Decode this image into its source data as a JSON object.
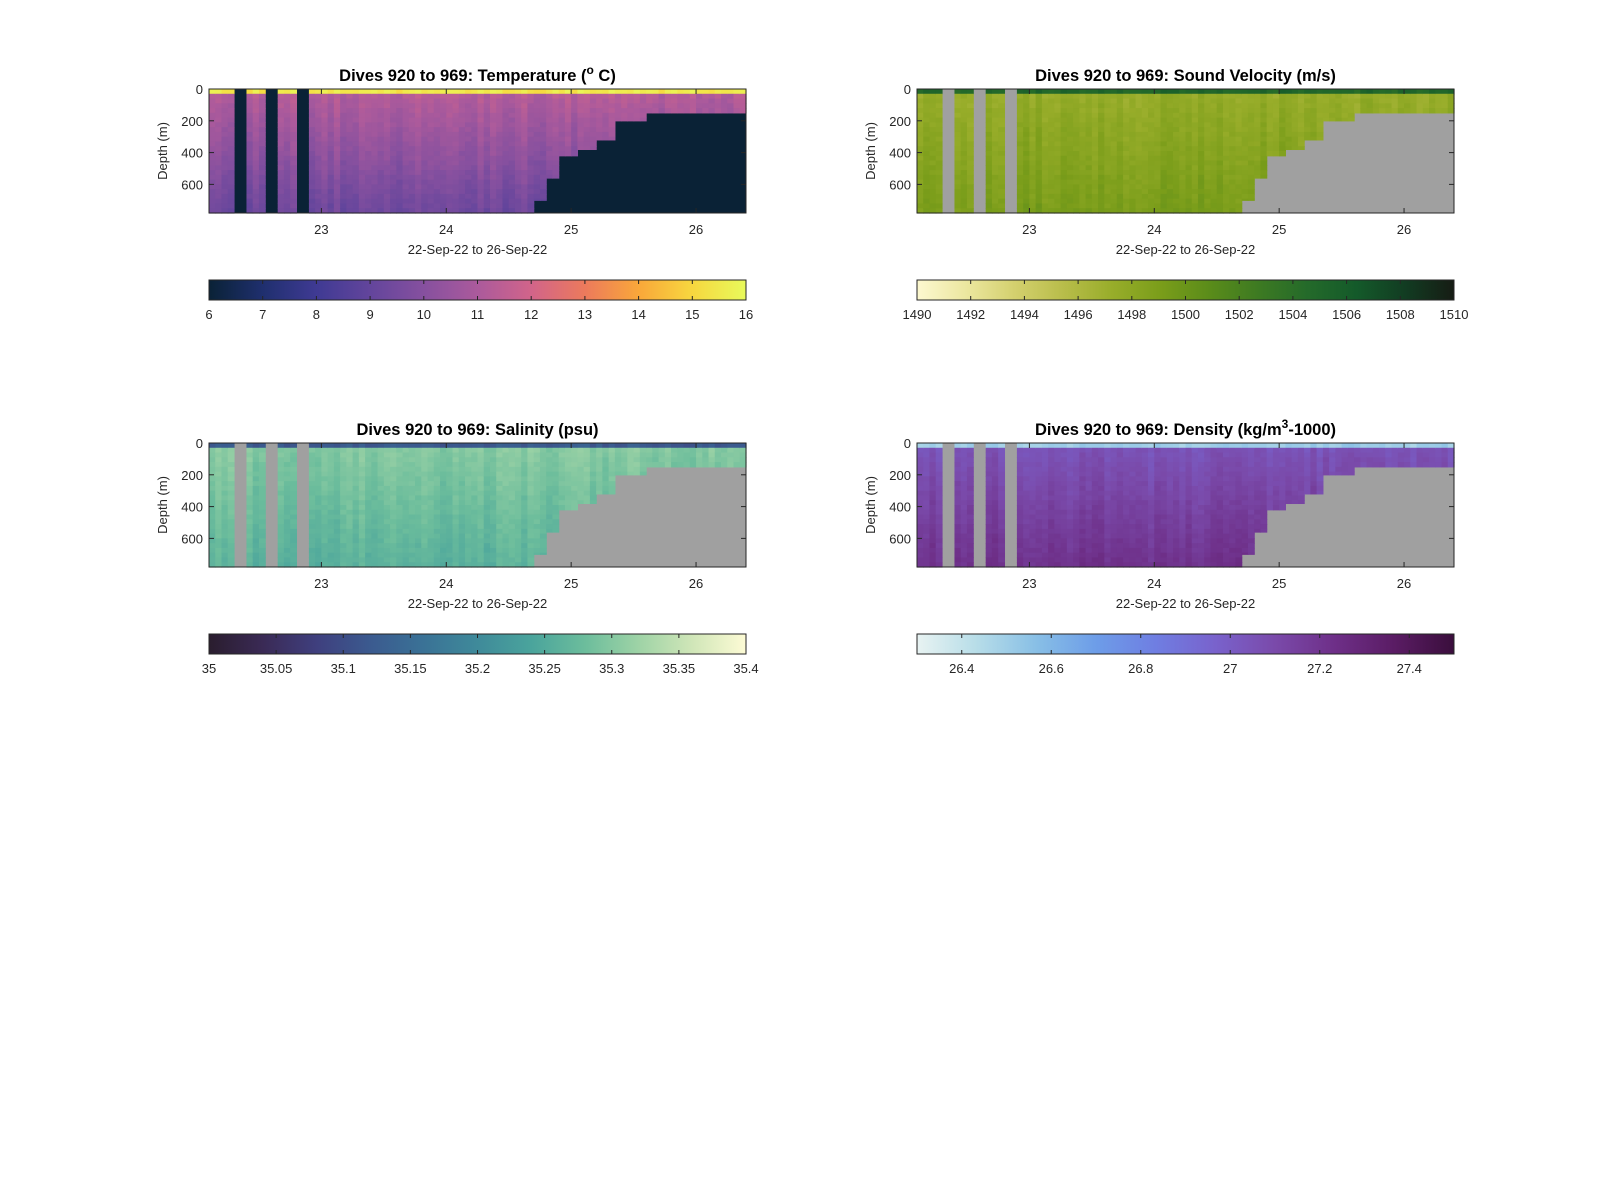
{
  "figure": {
    "x_axis_label": "22-Sep-22 to 26-Sep-22",
    "y_axis_label": "Depth (m)",
    "missing_data_color": "#a0a0a0"
  },
  "chart_data": [
    {
      "type": "heatmap",
      "title": "Dives 920 to 969: Temperature (° C)",
      "title_parts": {
        "pre": "Dives 920 to 969: Temperature (",
        "sup": "o",
        "post": " C)"
      },
      "xlabel": "22-Sep-22 to 26-Sep-22",
      "ylabel": "Depth (m)",
      "x_ticks": [
        "23",
        "24",
        "25",
        "26"
      ],
      "y_ticks": [
        "0",
        "200",
        "400",
        "600"
      ],
      "xlim": [
        22.1,
        26.4
      ],
      "ylim": [
        0,
        780
      ],
      "colorbar": {
        "min": 6,
        "max": 16,
        "ticks": [
          "6",
          "7",
          "8",
          "9",
          "10",
          "11",
          "12",
          "13",
          "14",
          "15",
          "16"
        ],
        "colormap": [
          "#0a2236",
          "#1f2f6e",
          "#3f3a93",
          "#63459c",
          "#86509f",
          "#ab5a9c",
          "#d1648a",
          "#ec7a5c",
          "#f9a73a",
          "#f7d73f",
          "#e8fa5b"
        ]
      },
      "missing_color": "#0a2236",
      "profile": {
        "surface": 15.5,
        "mixed_layer_depth": 40,
        "thermocline_value": 11.2,
        "deep_value": 9.3
      },
      "gaps_days": [
        22.35,
        22.61,
        22.87
      ],
      "max_depth_by_day": [
        [
          22.1,
          780
        ],
        [
          24.6,
          780
        ],
        [
          24.7,
          700
        ],
        [
          24.78,
          560
        ],
        [
          24.88,
          420
        ],
        [
          25.05,
          380
        ],
        [
          25.2,
          320
        ],
        [
          25.35,
          200
        ],
        [
          25.6,
          150
        ],
        [
          26.4,
          120
        ]
      ]
    },
    {
      "type": "heatmap",
      "title": "Dives 920 to 969: Sound Velocity (m/s)",
      "title_parts": {
        "pre": "Dives 920 to 969: Sound Velocity (m/s)",
        "sup": "",
        "post": ""
      },
      "xlabel": "22-Sep-22 to 26-Sep-22",
      "ylabel": "Depth (m)",
      "x_ticks": [
        "23",
        "24",
        "25",
        "26"
      ],
      "y_ticks": [
        "0",
        "200",
        "400",
        "600"
      ],
      "xlim": [
        22.1,
        26.4
      ],
      "ylim": [
        0,
        780
      ],
      "colorbar": {
        "min": 1490,
        "max": 1510,
        "ticks": [
          "1490",
          "1492",
          "1494",
          "1496",
          "1498",
          "1500",
          "1502",
          "1504",
          "1506",
          "1508",
          "1510"
        ],
        "colormap": [
          "#fdf8d0",
          "#ece7a0",
          "#d4d06e",
          "#b8bd4a",
          "#98ad2a",
          "#7a9d1a",
          "#5a8c1a",
          "#3d7a22",
          "#246a2a",
          "#145a2a",
          "#123c22",
          "#161c14"
        ]
      },
      "missing_color": "#a0a0a0",
      "profile": {
        "surface": 1505,
        "mixed_layer_depth": 40,
        "thermocline_value": 1497.5,
        "deep_value": 1499.2
      },
      "gaps_days": [
        22.35,
        22.61,
        22.87
      ],
      "max_depth_by_day": [
        [
          22.1,
          780
        ],
        [
          24.6,
          780
        ],
        [
          24.7,
          700
        ],
        [
          24.78,
          560
        ],
        [
          24.88,
          420
        ],
        [
          25.05,
          380
        ],
        [
          25.2,
          320
        ],
        [
          25.35,
          200
        ],
        [
          25.6,
          150
        ],
        [
          26.4,
          120
        ]
      ]
    },
    {
      "type": "heatmap",
      "title": "Dives 920 to 969: Salinity (psu)",
      "title_parts": {
        "pre": "Dives 920 to 969: Salinity (psu)",
        "sup": "",
        "post": ""
      },
      "xlabel": "22-Sep-22 to 26-Sep-22",
      "ylabel": "Depth (m)",
      "x_ticks": [
        "23",
        "24",
        "25",
        "26"
      ],
      "y_ticks": [
        "0",
        "200",
        "400",
        "600"
      ],
      "xlim": [
        22.1,
        26.4
      ],
      "ylim": [
        0,
        780
      ],
      "colorbar": {
        "min": 35,
        "max": 35.4,
        "ticks": [
          "35",
          "35.05",
          "35.1",
          "35.15",
          "35.2",
          "35.25",
          "35.3",
          "35.35",
          "35.4"
        ],
        "colormap": [
          "#2a1d2e",
          "#3a2a55",
          "#3f3f7e",
          "#3b5a8f",
          "#3a7296",
          "#3f8a9a",
          "#4aa49c",
          "#6cbd9c",
          "#9ed3a6",
          "#d0e6b8",
          "#fdfbd5"
        ]
      },
      "missing_color": "#a0a0a0",
      "profile": {
        "surface": 35.12,
        "mixed_layer_depth": 40,
        "thermocline_value": 35.3,
        "deep_value": 35.26
      },
      "gaps_days": [
        22.35,
        22.61,
        22.87
      ],
      "max_depth_by_day": [
        [
          22.1,
          780
        ],
        [
          24.6,
          780
        ],
        [
          24.7,
          700
        ],
        [
          24.78,
          560
        ],
        [
          24.88,
          420
        ],
        [
          25.05,
          380
        ],
        [
          25.2,
          320
        ],
        [
          25.35,
          200
        ],
        [
          25.6,
          150
        ],
        [
          26.4,
          120
        ]
      ]
    },
    {
      "type": "heatmap",
      "title": "Dives 920 to 969: Density (kg/m³-1000)",
      "title_parts": {
        "pre": "Dives 920 to 969: Density (kg/m",
        "sup": "3",
        "post": "-1000)"
      },
      "xlabel": "22-Sep-22 to 26-Sep-22",
      "ylabel": "Depth (m)",
      "x_ticks": [
        "23",
        "24",
        "25",
        "26"
      ],
      "y_ticks": [
        "0",
        "200",
        "400",
        "600"
      ],
      "xlim": [
        22.1,
        26.4
      ],
      "ylim": [
        0,
        780
      ],
      "colorbar": {
        "min": 26.3,
        "max": 27.5,
        "ticks": [
          "26.4",
          "26.6",
          "26.8",
          "27",
          "27.2",
          "27.4"
        ],
        "colormap": [
          "#e8f3f2",
          "#b7dde8",
          "#88bfe6",
          "#6d9de8",
          "#6f7ee2",
          "#7962cc",
          "#7a4aaa",
          "#6e2f88",
          "#5a1c64",
          "#3a0e3c"
        ]
      },
      "missing_color": "#a0a0a0",
      "profile": {
        "surface": 26.5,
        "mixed_layer_depth": 40,
        "thermocline_value": 27.05,
        "deep_value": 27.22
      },
      "gaps_days": [
        22.35,
        22.61,
        22.87
      ],
      "max_depth_by_day": [
        [
          22.1,
          780
        ],
        [
          24.6,
          780
        ],
        [
          24.7,
          700
        ],
        [
          24.78,
          560
        ],
        [
          24.88,
          420
        ],
        [
          25.05,
          380
        ],
        [
          25.2,
          320
        ],
        [
          25.35,
          200
        ],
        [
          25.6,
          150
        ],
        [
          26.4,
          120
        ]
      ]
    }
  ]
}
